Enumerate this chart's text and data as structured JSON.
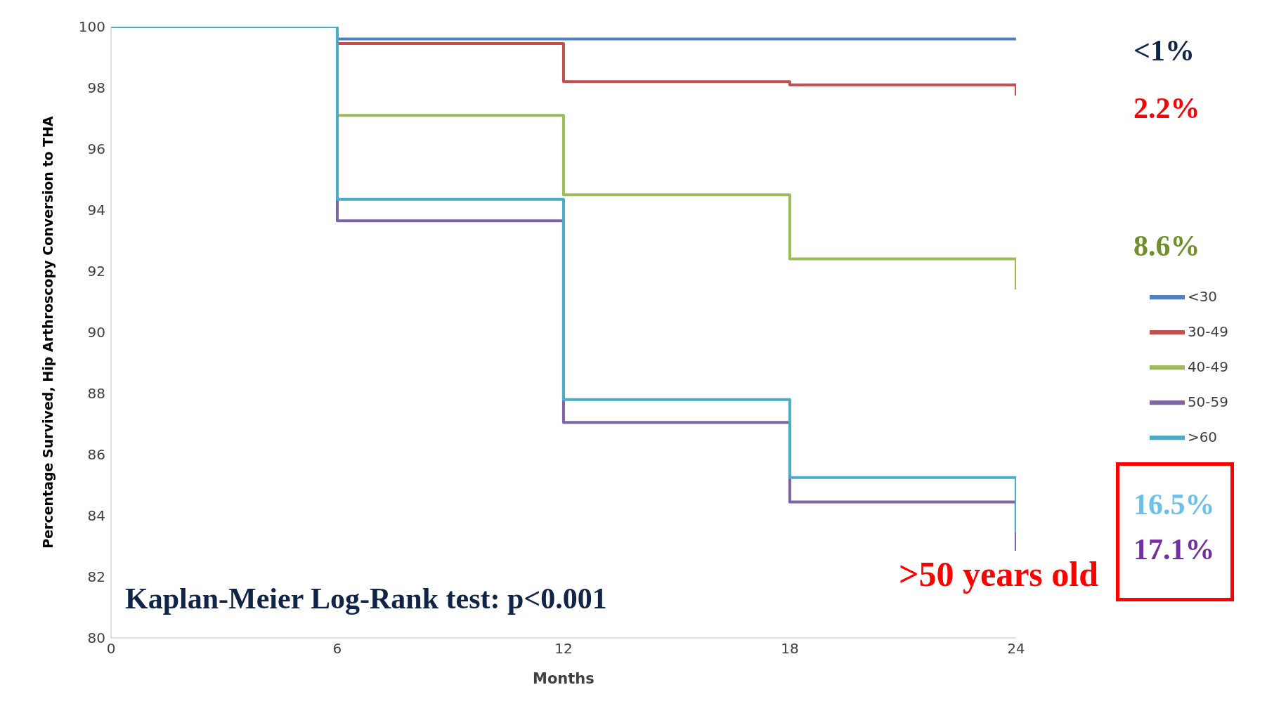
{
  "chart_data": {
    "type": "step",
    "xlabel": "Months",
    "ylabel": "Percentage Survived, Hip Arthroscopy Conversion to THA",
    "x": [
      0,
      6,
      12,
      18,
      24,
      24
    ],
    "series": [
      {
        "name": "<30",
        "color": "#4f81bd",
        "values": [
          100,
          99.6,
          99.6,
          99.6,
          99.6,
          99.6
        ]
      },
      {
        "name": "30-49",
        "color": "#c0504d",
        "values": [
          100,
          99.45,
          98.2,
          98.1,
          98.1,
          97.75
        ]
      },
      {
        "name": "40-49",
        "color": "#9bbb59",
        "values": [
          100,
          97.1,
          94.5,
          92.4,
          92.4,
          91.4
        ]
      },
      {
        "name": "50-59",
        "color": "#8064a2",
        "values": [
          100,
          93.65,
          87.05,
          84.45,
          84.45,
          82.85
        ]
      },
      {
        "name": ">60",
        "color": "#4bacc6",
        "values": [
          100,
          94.35,
          87.8,
          85.25,
          85.25,
          83.45
        ]
      }
    ],
    "xlim": [
      0,
      24
    ],
    "xticks": [
      0,
      6,
      12,
      18,
      24
    ],
    "ylim": [
      80,
      100
    ],
    "yticks": [
      80,
      82,
      84,
      86,
      88,
      90,
      92,
      94,
      96,
      98,
      100
    ],
    "grid": false,
    "legend": "right",
    "marker": "none",
    "line_style": "solid",
    "annotations": [
      "<1%",
      "2.2%",
      "8.6%",
      "16.5%",
      "17.1%",
      ">50 years old",
      "Kaplan-Meier Log-Rank test: p<0.001"
    ]
  }
}
